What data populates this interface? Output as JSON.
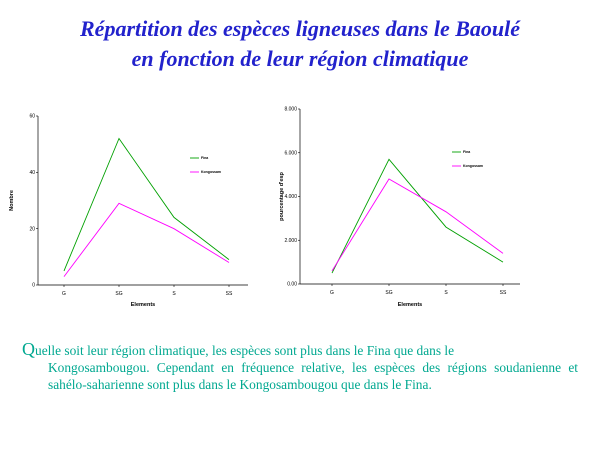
{
  "title": {
    "line1": "Répartition des espèces ligneuses dans le Baoulé",
    "line2": "en fonction de leur région climatique"
  },
  "chart_data": [
    {
      "type": "line",
      "categories": [
        "G",
        "SG",
        "S",
        "SS"
      ],
      "series": [
        {
          "name": "Fina",
          "values": [
            5,
            52,
            24,
            9
          ],
          "color": "#00a000"
        },
        {
          "name": "Kongossam",
          "values": [
            3,
            29,
            20,
            8
          ],
          "color": "#ff00ff"
        }
      ],
      "xlabel": "Elements",
      "ylabel": "Nombre",
      "ylim": [
        0,
        60
      ],
      "yticks": [
        "0",
        "20",
        "40",
        "60"
      ],
      "legend": "right"
    },
    {
      "type": "line",
      "categories": [
        "G",
        "SG",
        "S",
        "SS"
      ],
      "series": [
        {
          "name": "Fina",
          "values": [
            0.5,
            5.7,
            2.6,
            1.0
          ],
          "color": "#00a000"
        },
        {
          "name": "Kongossam",
          "values": [
            0.6,
            4.8,
            3.3,
            1.4
          ],
          "color": "#ff00ff"
        }
      ],
      "xlabel": "Elements",
      "ylabel": "pourcentage d'esp",
      "ylim": [
        0,
        8
      ],
      "yticks": [
        "0.00",
        "2.000",
        "4.000",
        "6.000",
        "8.000"
      ],
      "legend": "right"
    }
  ],
  "caption": {
    "first_letter": "Q",
    "rest_line1": "uelle soit leur région climatique, les espèces sont plus dans le Fina que dans le",
    "indented": "Kongosambougou. Cependant en fréquence relative, les espèces des régions soudanienne et sahélo-saharienne sont plus dans le Kongosambougou que dans le Fina."
  }
}
